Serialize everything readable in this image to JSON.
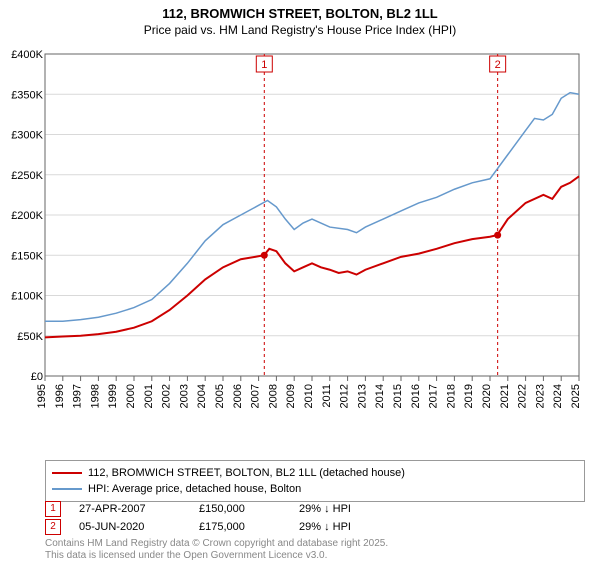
{
  "title_line1": "112, BROMWICH STREET, BOLTON, BL2 1LL",
  "title_line2": "Price paid vs. HM Land Registry's House Price Index (HPI)",
  "chart": {
    "type": "line",
    "background_color": "#ffffff",
    "grid_color": "#d9d9d9",
    "axis_color": "#666666",
    "tick_font_size": 11,
    "x_years": [
      1995,
      1996,
      1997,
      1998,
      1999,
      2000,
      2001,
      2002,
      2003,
      2004,
      2005,
      2006,
      2007,
      2008,
      2009,
      2010,
      2011,
      2012,
      2013,
      2014,
      2015,
      2016,
      2017,
      2018,
      2019,
      2020,
      2021,
      2022,
      2023,
      2024,
      2025
    ],
    "y_ticks": [
      0,
      50000,
      100000,
      150000,
      200000,
      250000,
      300000,
      350000,
      400000
    ],
    "y_labels": [
      "£0",
      "£50K",
      "£100K",
      "£150K",
      "£200K",
      "£250K",
      "£300K",
      "£350K",
      "£400K"
    ],
    "y_max": 400000,
    "series": [
      {
        "name": "price_paid",
        "label": "112, BROMWICH STREET, BOLTON, BL2 1LL (detached house)",
        "color": "#cc0000",
        "line_width": 2,
        "data": [
          [
            1995,
            48000
          ],
          [
            1996,
            49000
          ],
          [
            1997,
            50000
          ],
          [
            1998,
            52000
          ],
          [
            1999,
            55000
          ],
          [
            2000,
            60000
          ],
          [
            2001,
            68000
          ],
          [
            2002,
            82000
          ],
          [
            2003,
            100000
          ],
          [
            2004,
            120000
          ],
          [
            2005,
            135000
          ],
          [
            2006,
            145000
          ],
          [
            2006.8,
            148000
          ],
          [
            2007.3,
            150000
          ],
          [
            2007.6,
            158000
          ],
          [
            2008,
            155000
          ],
          [
            2008.5,
            140000
          ],
          [
            2009,
            130000
          ],
          [
            2009.5,
            135000
          ],
          [
            2010,
            140000
          ],
          [
            2010.5,
            135000
          ],
          [
            2011,
            132000
          ],
          [
            2011.5,
            128000
          ],
          [
            2012,
            130000
          ],
          [
            2012.5,
            126000
          ],
          [
            2013,
            132000
          ],
          [
            2014,
            140000
          ],
          [
            2015,
            148000
          ],
          [
            2016,
            152000
          ],
          [
            2017,
            158000
          ],
          [
            2018,
            165000
          ],
          [
            2019,
            170000
          ],
          [
            2020,
            173000
          ],
          [
            2020.4,
            175000
          ],
          [
            2021,
            195000
          ],
          [
            2022,
            215000
          ],
          [
            2023,
            225000
          ],
          [
            2023.5,
            220000
          ],
          [
            2024,
            235000
          ],
          [
            2024.5,
            240000
          ],
          [
            2025,
            248000
          ]
        ]
      },
      {
        "name": "hpi",
        "label": "HPI: Average price, detached house, Bolton",
        "color": "#6699cc",
        "line_width": 1.5,
        "data": [
          [
            1995,
            68000
          ],
          [
            1996,
            68000
          ],
          [
            1997,
            70000
          ],
          [
            1998,
            73000
          ],
          [
            1999,
            78000
          ],
          [
            2000,
            85000
          ],
          [
            2001,
            95000
          ],
          [
            2002,
            115000
          ],
          [
            2003,
            140000
          ],
          [
            2004,
            168000
          ],
          [
            2005,
            188000
          ],
          [
            2006,
            200000
          ],
          [
            2007,
            212000
          ],
          [
            2007.5,
            218000
          ],
          [
            2008,
            210000
          ],
          [
            2008.5,
            195000
          ],
          [
            2009,
            182000
          ],
          [
            2009.5,
            190000
          ],
          [
            2010,
            195000
          ],
          [
            2010.5,
            190000
          ],
          [
            2011,
            185000
          ],
          [
            2012,
            182000
          ],
          [
            2012.5,
            178000
          ],
          [
            2013,
            185000
          ],
          [
            2014,
            195000
          ],
          [
            2015,
            205000
          ],
          [
            2016,
            215000
          ],
          [
            2017,
            222000
          ],
          [
            2018,
            232000
          ],
          [
            2019,
            240000
          ],
          [
            2020,
            245000
          ],
          [
            2021,
            275000
          ],
          [
            2022,
            305000
          ],
          [
            2022.5,
            320000
          ],
          [
            2023,
            318000
          ],
          [
            2023.5,
            325000
          ],
          [
            2024,
            345000
          ],
          [
            2024.5,
            352000
          ],
          [
            2025,
            350000
          ]
        ]
      }
    ],
    "markers": [
      {
        "num": "1",
        "x": 2007.32,
        "y": 150000,
        "date": "27-APR-2007",
        "price": "£150,000",
        "diff": "29% ↓ HPI",
        "line_color": "#cc0000",
        "badge_border": "#cc0000"
      },
      {
        "num": "2",
        "x": 2020.43,
        "y": 175000,
        "date": "05-JUN-2020",
        "price": "£175,000",
        "diff": "29% ↓ HPI",
        "line_color": "#cc0000",
        "badge_border": "#cc0000"
      }
    ]
  },
  "footer_l1": "Contains HM Land Registry data © Crown copyright and database right 2025.",
  "footer_l2": "This data is licensed under the Open Government Licence v3.0."
}
